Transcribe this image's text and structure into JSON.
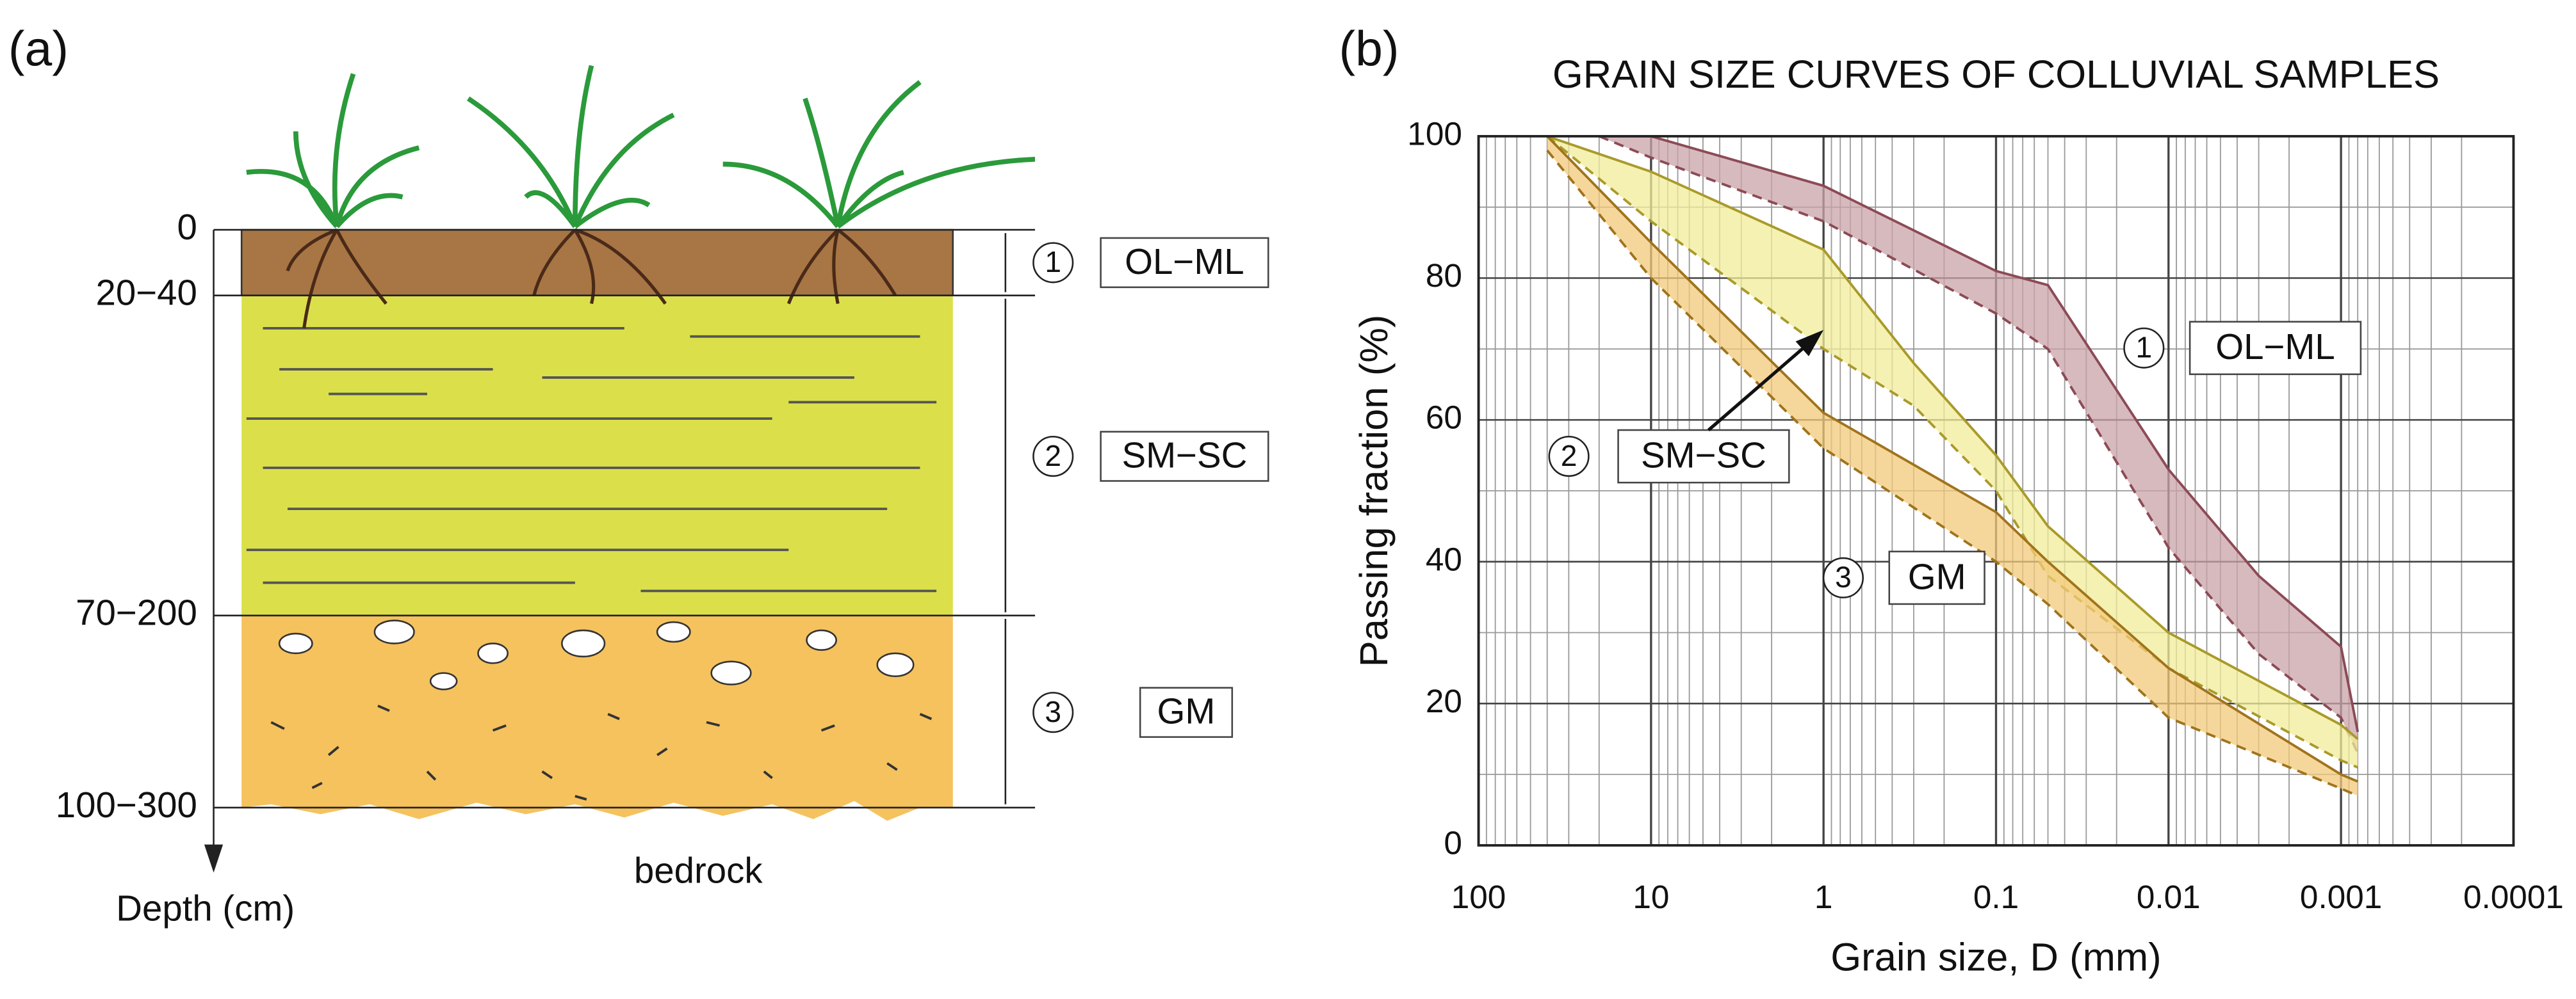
{
  "diagram": {
    "label": "(a)",
    "depths": [
      "0",
      "20−40",
      "70−200",
      "100−300"
    ],
    "depth_axis": "Depth (cm)",
    "bedrock": "bedrock",
    "layers": [
      {
        "id": "1",
        "name": "OL−ML"
      },
      {
        "id": "2",
        "name": "SM−SC"
      },
      {
        "id": "3",
        "name": "GM"
      }
    ]
  },
  "chart_data": {
    "type": "band",
    "label": "(b)",
    "title": "GRAIN SIZE CURVES OF COLLUVIAL SAMPLES",
    "x_label": "Grain size, D (mm)",
    "y_label": "Passing fraction (%)",
    "xlim": [
      100,
      0.0001
    ],
    "xticks": [
      100,
      10,
      1,
      0.1,
      0.01,
      0.001,
      0.0001
    ],
    "log_x": true,
    "ylim": [
      0,
      100
    ],
    "yticks": [
      0,
      20,
      40,
      60,
      80,
      100
    ],
    "grid": true,
    "series": [
      {
        "id": "1",
        "name": "OL−ML",
        "color": "#8c4a55",
        "fill": "#c9a3a8",
        "x": [
          20,
          10,
          1,
          0.1,
          0.05,
          0.01,
          0.003,
          0.001,
          0.0008
        ],
        "upper": [
          100,
          100,
          93,
          81,
          79,
          53,
          38,
          28,
          16
        ],
        "lower": [
          100,
          97,
          88,
          75,
          70,
          42,
          27,
          18,
          13
        ]
      },
      {
        "id": "2",
        "name": "SM−SC",
        "color": "#a99a2a",
        "fill": "#f1ec9a",
        "x": [
          40,
          10,
          1,
          0.3,
          0.1,
          0.05,
          0.01,
          0.001,
          0.0008
        ],
        "upper": [
          100,
          95,
          84,
          68,
          55,
          45,
          30,
          17,
          15
        ],
        "lower": [
          100,
          88,
          70,
          62,
          50,
          38,
          25,
          12,
          11
        ]
      },
      {
        "id": "3",
        "name": "GM",
        "color": "#a0741c",
        "fill": "#f3c97a",
        "x": [
          40,
          10,
          1,
          0.1,
          0.05,
          0.01,
          0.001,
          0.0008
        ],
        "upper": [
          100,
          85,
          61,
          47,
          40,
          25,
          10,
          9
        ],
        "lower": [
          98,
          80,
          56,
          40,
          34,
          18,
          8,
          7
        ]
      }
    ]
  }
}
